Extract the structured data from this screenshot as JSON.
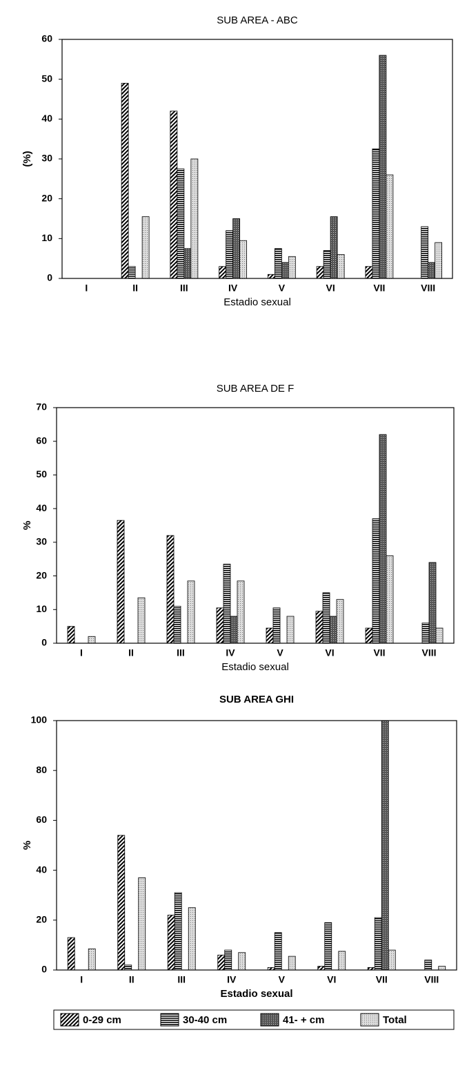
{
  "chart_data": [
    {
      "type": "bar",
      "title": "SUB AREA - ABC",
      "x_label": "Estadio sexual",
      "y_label": "(%)",
      "categories": [
        "I",
        "II",
        "III",
        "IV",
        "V",
        "VI",
        "VII",
        "VIII"
      ],
      "ylim": [
        0,
        60
      ],
      "yticks": [
        0,
        10,
        20,
        30,
        40,
        50,
        60
      ],
      "series": [
        {
          "pattern": "diagonal",
          "values": [
            0,
            49,
            42,
            3,
            1,
            3,
            3,
            0
          ]
        },
        {
          "pattern": "horizontal",
          "values": [
            0,
            3,
            27.5,
            12,
            7.5,
            7,
            32.5,
            13
          ]
        },
        {
          "pattern": "crosshatch",
          "values": [
            0,
            0,
            7.5,
            15,
            4,
            15.5,
            56,
            4
          ]
        },
        {
          "pattern": "dots",
          "values": [
            0,
            15.5,
            30,
            9.5,
            5.5,
            6,
            26,
            9
          ]
        }
      ]
    },
    {
      "type": "bar",
      "title": "SUB AREA DE F",
      "x_label": "Estadio sexual",
      "y_label": "%",
      "categories": [
        "I",
        "II",
        "III",
        "IV",
        "V",
        "VI",
        "VII",
        "VIII"
      ],
      "ylim": [
        0,
        70
      ],
      "yticks": [
        0,
        10,
        20,
        30,
        40,
        50,
        60,
        70
      ],
      "series": [
        {
          "pattern": "diagonal",
          "values": [
            5,
            36.5,
            32,
            10.5,
            4.5,
            9.5,
            4.5,
            0
          ]
        },
        {
          "pattern": "horizontal",
          "values": [
            0,
            0,
            11,
            23.5,
            10.5,
            15,
            37,
            6
          ]
        },
        {
          "pattern": "crosshatch",
          "values": [
            0,
            0,
            0,
            8,
            0,
            8,
            62,
            24
          ]
        },
        {
          "pattern": "dots",
          "values": [
            2,
            13.5,
            18.5,
            18.5,
            8,
            13,
            26,
            4.5
          ]
        }
      ]
    },
    {
      "type": "bar",
      "title": "SUB AREA GHI",
      "x_label": "Estadio sexual",
      "y_label": "%",
      "categories": [
        "I",
        "II",
        "III",
        "IV",
        "V",
        "VI",
        "VII",
        "VIII"
      ],
      "ylim": [
        0,
        100
      ],
      "yticks": [
        0,
        20,
        40,
        60,
        80,
        100
      ],
      "legend": "bottom",
      "series": [
        {
          "name": "0-29 cm",
          "pattern": "diagonal",
          "values": [
            13,
            54,
            22,
            6,
            1,
            1.5,
            1,
            0
          ]
        },
        {
          "name": "30-40 cm",
          "pattern": "horizontal",
          "values": [
            0,
            2,
            31,
            8,
            15,
            19,
            21,
            4
          ]
        },
        {
          "name": "41- + cm",
          "pattern": "crosshatch",
          "values": [
            0,
            0,
            0,
            0,
            0,
            0,
            100,
            0
          ]
        },
        {
          "name": "Total",
          "pattern": "dots",
          "values": [
            8.5,
            37,
            25,
            7,
            5.5,
            7.5,
            8,
            1.5
          ]
        }
      ]
    }
  ]
}
